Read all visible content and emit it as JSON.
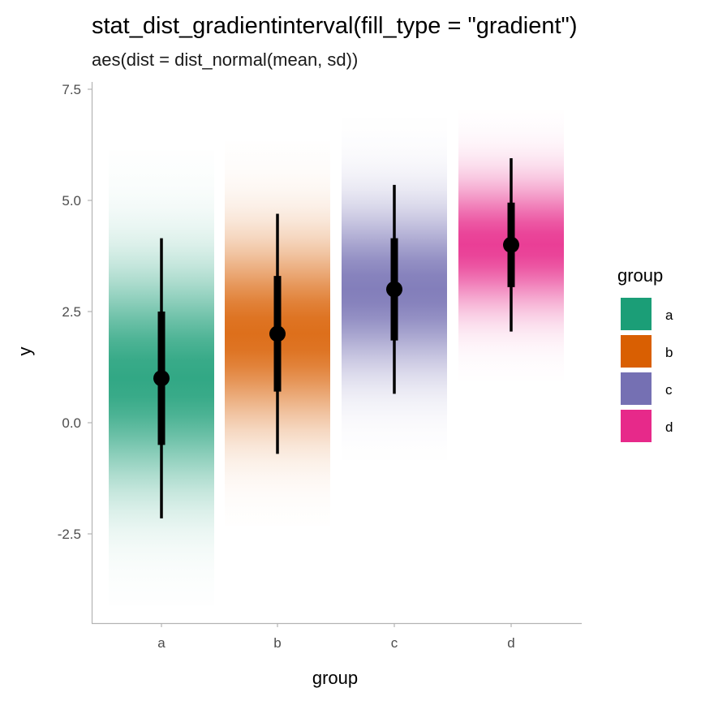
{
  "chart_data": {
    "type": "gradientinterval",
    "title": "stat_dist_gradientinterval(fill_type = \"gradient\")",
    "subtitle": "aes(dist = dist_normal(mean, sd))",
    "xlabel": "group",
    "ylabel": "y",
    "categories": [
      "a",
      "b",
      "c",
      "d"
    ],
    "ylim": [
      -4.5,
      7.6
    ],
    "yticks": [
      -2.5,
      0.0,
      2.5,
      5.0,
      7.5
    ],
    "ytick_labels": [
      "-2.5",
      "0.0",
      "2.5",
      "5.0",
      "7.5"
    ],
    "grid": false,
    "legend_position": "right",
    "legend_title": "group",
    "series": [
      {
        "name": "a",
        "color": "#1B9E77",
        "mean": 1.0,
        "sd": 1.6,
        "interval_66": [
          -0.5,
          2.5
        ],
        "interval_95": [
          -2.15,
          4.15
        ]
      },
      {
        "name": "b",
        "color": "#D95F02",
        "mean": 2.0,
        "sd": 1.35,
        "interval_66": [
          0.7,
          3.3
        ],
        "interval_95": [
          -0.7,
          4.7
        ]
      },
      {
        "name": "c",
        "color": "#7570B3",
        "mean": 3.0,
        "sd": 1.2,
        "interval_66": [
          1.85,
          4.15
        ],
        "interval_95": [
          0.65,
          5.35
        ]
      },
      {
        "name": "d",
        "color": "#E7298A",
        "mean": 4.0,
        "sd": 0.95,
        "interval_66": [
          3.05,
          4.95
        ],
        "interval_95": [
          2.05,
          5.95
        ]
      }
    ]
  }
}
